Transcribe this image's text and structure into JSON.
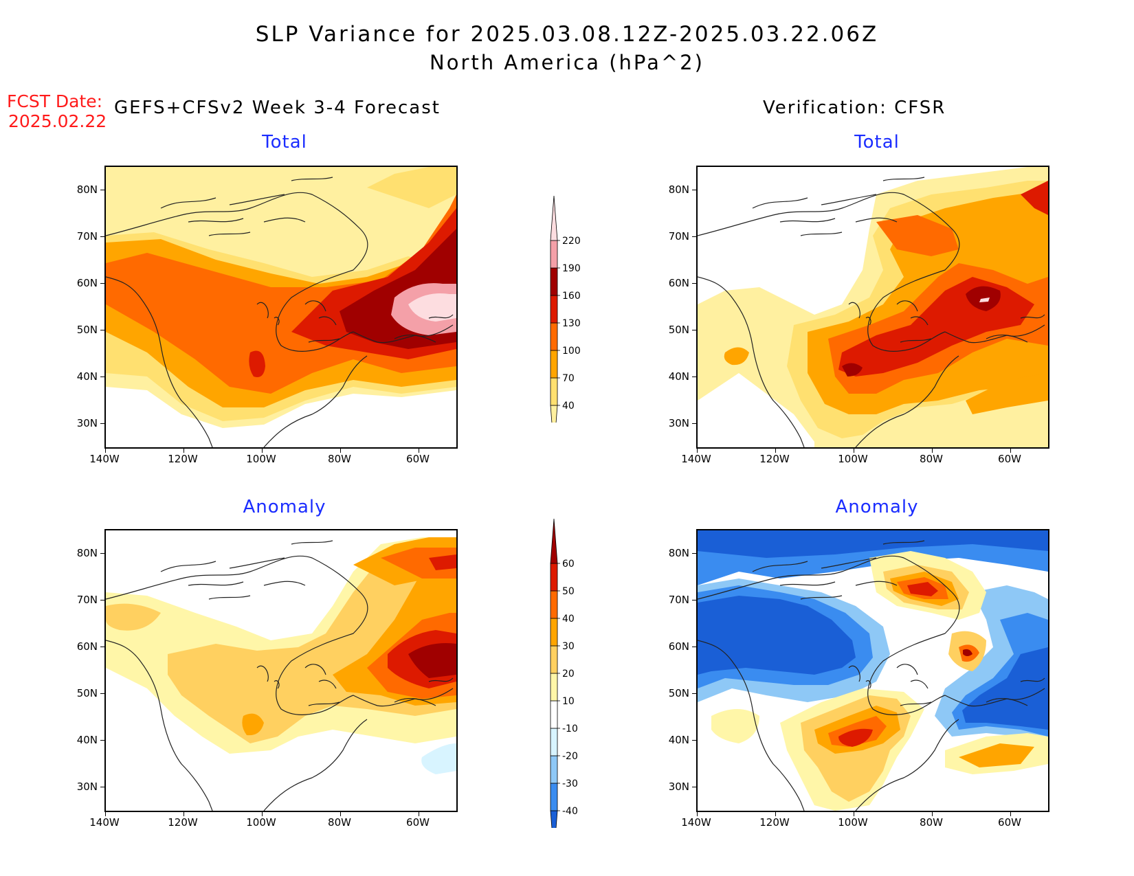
{
  "header": {
    "title_line1": "SLP Variance for 2025.03.08.12Z-2025.03.22.06Z",
    "title_line2": "North America (hPa^2)",
    "fcst_date_label": "FCST Date:",
    "fcst_date_value": "2025.02.22",
    "left_column_title": "GEFS+CFSv2 Week 3-4 Forecast",
    "right_column_title": "Verification: CFSR"
  },
  "panels": {
    "top_left": "Total",
    "top_right": "Total",
    "bottom_left": "Anomaly",
    "bottom_right": "Anomaly"
  },
  "axes": {
    "lat_ticks": [
      "80N",
      "70N",
      "60N",
      "50N",
      "40N",
      "30N"
    ],
    "lon_ticks": [
      "140W",
      "120W",
      "100W",
      "80W",
      "60W"
    ]
  },
  "colorbars": {
    "total": {
      "levels": [
        "40",
        "70",
        "100",
        "130",
        "160",
        "190",
        "220"
      ],
      "colors": [
        "#fff0a0",
        "#ffe070",
        "#ffa500",
        "#ff6a00",
        "#dd1a00",
        "#a00000",
        "#f4a0a8",
        "#fddde0"
      ]
    },
    "anomaly": {
      "levels": [
        "-40",
        "-30",
        "-20",
        "-10",
        "10",
        "20",
        "30",
        "40",
        "50",
        "60"
      ],
      "colors": [
        "#1a5fd6",
        "#3a8cf0",
        "#8ec8f6",
        "#d8f4ff",
        "#ffffff",
        "#fff6a8",
        "#ffd060",
        "#ffa500",
        "#ff6a00",
        "#dd1a00",
        "#a00000"
      ]
    }
  }
}
